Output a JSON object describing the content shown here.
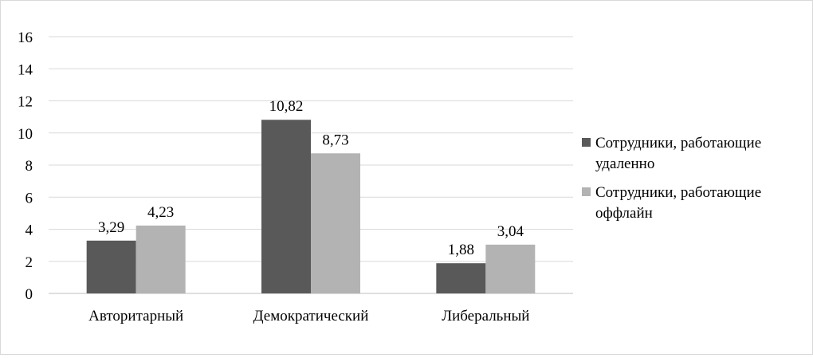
{
  "chart_data": {
    "type": "bar",
    "categories": [
      "Авторитарный",
      "Демократический",
      "Либеральный"
    ],
    "series": [
      {
        "name": "Сотрудники, работающие удаленно",
        "name_lines": [
          "Сотрудники, работающие",
          "удаленно"
        ],
        "values": [
          3.29,
          10.82,
          1.88
        ],
        "labels": [
          "3,29",
          "10,82",
          "1,88"
        ],
        "color": "#595959"
      },
      {
        "name": "Сотрудники, работающие оффлайн",
        "name_lines": [
          "Сотрудники, работающие",
          "оффлайн"
        ],
        "values": [
          4.23,
          8.73,
          3.04
        ],
        "labels": [
          "4,23",
          "8,73",
          "3,04"
        ],
        "color": "#b3b3b3"
      }
    ],
    "ylim": [
      0,
      16
    ],
    "yticks": [
      0,
      2,
      4,
      6,
      8,
      10,
      12,
      14,
      16
    ],
    "grid": true,
    "legend_position": "right"
  }
}
